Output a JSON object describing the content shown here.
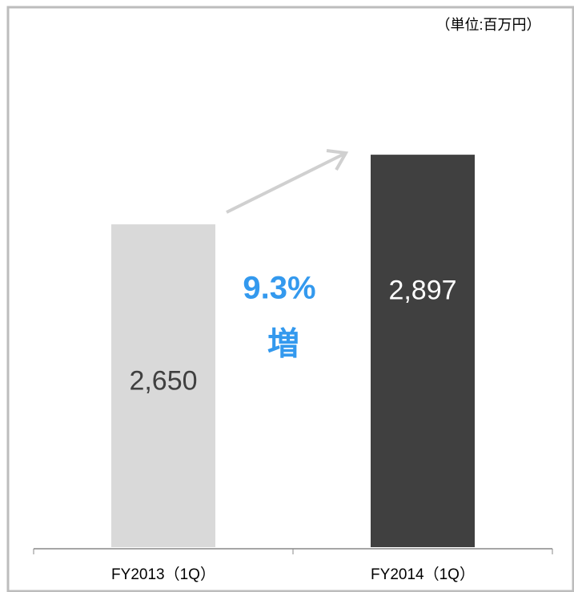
{
  "chart_data": {
    "type": "bar",
    "unit_label": "（単位:百万円）",
    "categories": [
      "FY2013（1Q）",
      "FY2014（1Q）"
    ],
    "values": [
      2650,
      2897
    ],
    "value_labels": [
      "2,650",
      "2,897"
    ],
    "colors": [
      "#d9d9d9",
      "#404040"
    ],
    "label_colors": [
      "#404040",
      "#ffffff"
    ],
    "ylim": [
      1505,
      3298
    ],
    "annotations": [
      "9.3%",
      "増"
    ],
    "annotation_color": "#3399ee"
  }
}
